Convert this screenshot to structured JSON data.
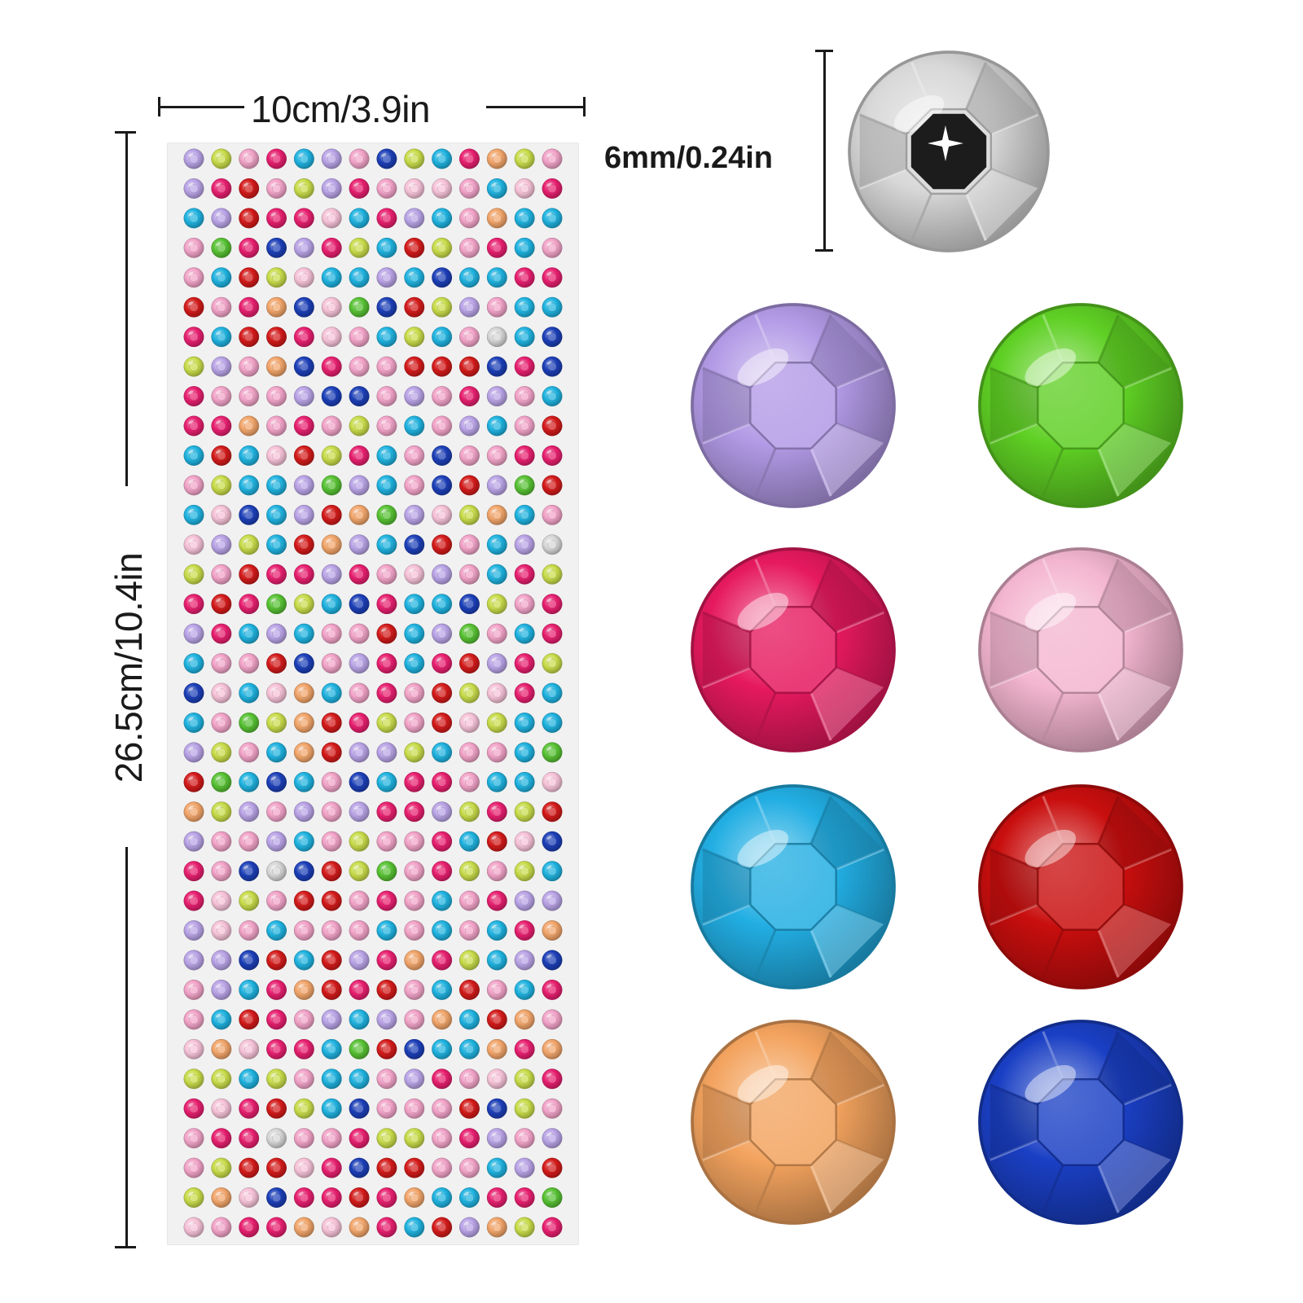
{
  "dimensions": {
    "width_label": "10cm/3.9in",
    "height_label": "26.5cm/10.4in",
    "gem_size_label": "6mm/0.24in"
  },
  "sheet": {
    "rows": 37,
    "columns": 14,
    "gem_colors": [
      "pink",
      "hot-pink",
      "cyan",
      "purple",
      "yellow-green",
      "red",
      "peach",
      "blue",
      "green",
      "light-pink",
      "silver"
    ]
  },
  "palette": {
    "pink": "#f2a3c8",
    "hot-pink": "#e81f6f",
    "cyan": "#1fb3e0",
    "purple": "#b9a3e6",
    "yellow-green": "#c8dc4a",
    "red": "#d41a1a",
    "peach": "#f2a56a",
    "blue": "#1c3fb8",
    "green": "#57c233",
    "light-pink": "#f6c2d7",
    "silver": "#d6d6d6"
  },
  "featured_gems": [
    {
      "name": "purple",
      "color": "#b39ae6"
    },
    {
      "name": "green",
      "color": "#5fd024"
    },
    {
      "name": "hot-pink",
      "color": "#e6195f"
    },
    {
      "name": "light-pink",
      "color": "#f4b6d0"
    },
    {
      "name": "cyan",
      "color": "#22aee3"
    },
    {
      "name": "red",
      "color": "#c90e0e"
    },
    {
      "name": "peach",
      "color": "#f3a35e"
    },
    {
      "name": "blue",
      "color": "#1a3fc4"
    }
  ]
}
